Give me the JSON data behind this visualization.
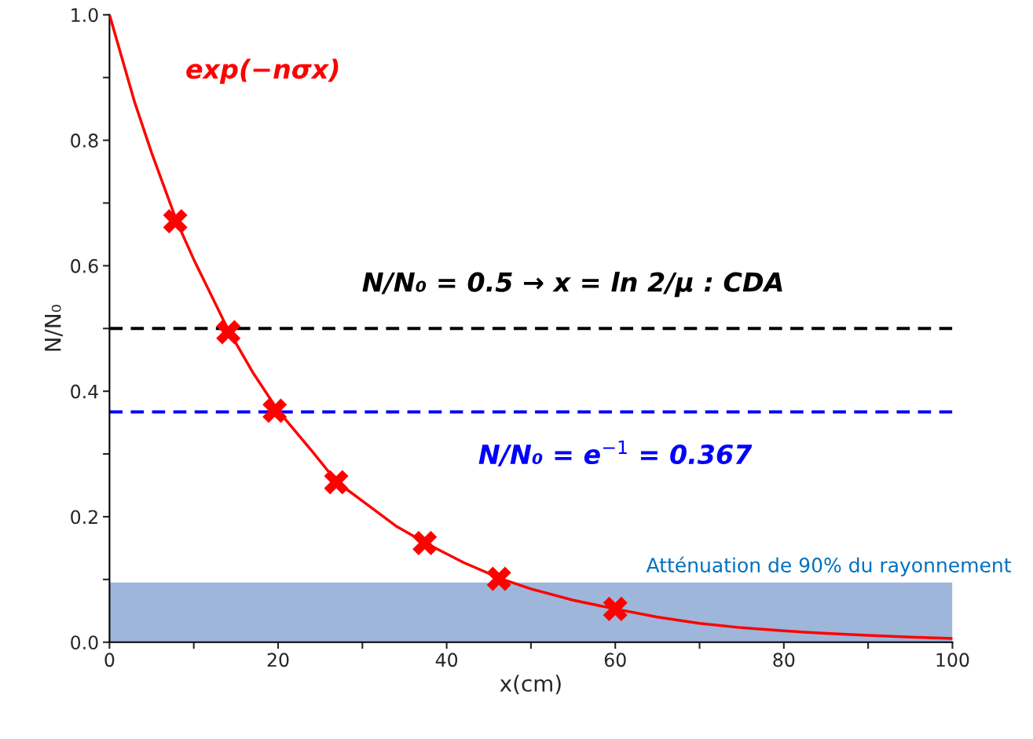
{
  "chart_data": {
    "type": "line",
    "xlabel": "x(cm)",
    "ylabel": "N/N₀",
    "xlim": [
      0,
      100
    ],
    "ylim": [
      0,
      1
    ],
    "xticks": [
      0,
      {
        "value": 10,
        "label": null
      },
      20,
      {
        "value": 30,
        "label": null
      },
      40,
      {
        "value": 50,
        "label": null
      },
      60,
      {
        "value": 70,
        "label": null
      },
      80,
      {
        "value": 90,
        "label": null
      },
      100
    ],
    "yticks": [
      {
        "value": 0,
        "label": "0.0"
      },
      {
        "value": 0.1,
        "label": null
      },
      {
        "value": 0.2,
        "label": "0.2"
      },
      {
        "value": 0.3,
        "label": null
      },
      {
        "value": 0.4,
        "label": "0.4"
      },
      {
        "value": 0.5,
        "label": null
      },
      {
        "value": 0.6,
        "label": "0.6"
      },
      {
        "value": 0.7,
        "label": null
      },
      {
        "value": 0.8,
        "label": "0.8"
      },
      {
        "value": 0.9,
        "label": null
      },
      {
        "value": 1.0,
        "label": "1.0"
      }
    ],
    "series": [
      {
        "name": "exp(−nσx)",
        "color": "#ff0000",
        "marker": "none",
        "x": [
          0,
          3,
          5,
          8,
          10,
          14,
          17,
          20,
          24,
          27,
          30,
          34,
          37.5,
          42,
          46.5,
          50,
          55,
          60,
          65,
          70,
          75,
          80,
          85,
          90,
          95,
          100
        ],
        "values": [
          1.0,
          0.86,
          0.78,
          0.67,
          0.61,
          0.5,
          0.43,
          0.369,
          0.305,
          0.255,
          0.225,
          0.185,
          0.158,
          0.127,
          0.101,
          0.085,
          0.067,
          0.053,
          0.04,
          0.03,
          0.023,
          0.018,
          0.014,
          0.011,
          0.008,
          0.006
        ]
      },
      {
        "type": "scatter",
        "color": "#ff0000",
        "marker": "cross",
        "x": [
          7.8,
          14.1,
          19.6,
          26.9,
          37.4,
          46.2,
          60.0
        ],
        "values": [
          0.671,
          0.494,
          0.369,
          0.255,
          0.158,
          0.101,
          0.053
        ]
      }
    ],
    "ref_lines": [
      {
        "axis": "y",
        "value": 0.5,
        "label": "N/N₀ = 0.5 → x = ln 2/μ : CDA",
        "color": "#000000",
        "line_style": "dashed"
      },
      {
        "axis": "y",
        "value": 0.367,
        "label": "N/N₀ = e$^{−1}$ = 0.367",
        "color": "#0000ff",
        "line_style": "dashed"
      }
    ],
    "bands": [
      {
        "axis": "y",
        "from": 0,
        "to": 0.095,
        "label": "Atténuation de 90% du rayonnement",
        "color": "#9db6da"
      }
    ],
    "legend": false,
    "grid": false
  }
}
